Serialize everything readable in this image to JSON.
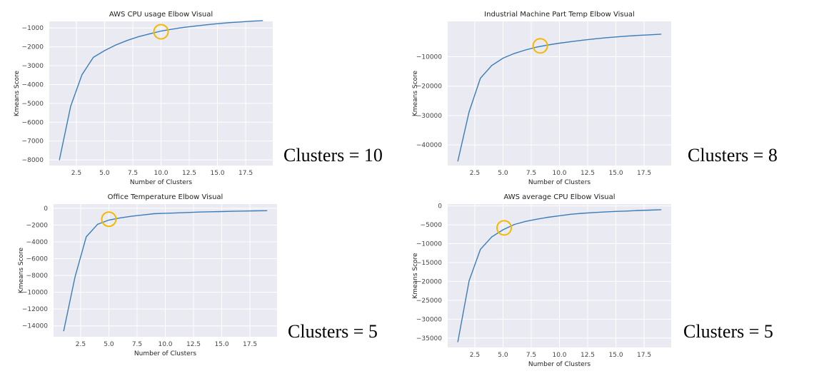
{
  "chart_data": [
    {
      "type": "line",
      "title": "AWS CPU usage Elbow Visual",
      "xlabel": "Number of Clusters",
      "ylabel": "Kmeans Score",
      "x": [
        1,
        2,
        3,
        4,
        5,
        6,
        7,
        8,
        9,
        10,
        11,
        12,
        13,
        14,
        15,
        16,
        17,
        18,
        19
      ],
      "values": [
        -8000,
        -5150,
        -3480,
        -2560,
        -2200,
        -1900,
        -1660,
        -1460,
        -1310,
        -1160,
        -1060,
        -970,
        -900,
        -830,
        -770,
        -720,
        -680,
        -640,
        -610
      ],
      "xlim": [
        0.1,
        19.9
      ],
      "ylim": [
        -8300,
        -650
      ],
      "xticks": [
        2.5,
        5.0,
        7.5,
        10.0,
        12.5,
        15.0,
        17.5
      ],
      "xtick_labels": [
        "2.5",
        "5.0",
        "7.5",
        "10.0",
        "12.5",
        "15.0",
        "17.5"
      ],
      "yticks": [
        -1000,
        -2000,
        -3000,
        -4000,
        -5000,
        -6000,
        -7000,
        -8000
      ],
      "ytick_labels": [
        "−1000",
        "−2000",
        "−3000",
        "−4000",
        "−5000",
        "−6000",
        "−7000",
        "−8000"
      ],
      "highlight": {
        "x": 10.0,
        "y": -1200
      },
      "grid": true,
      "line_color": "#3a7db8",
      "highlight_color": "#f5b800",
      "annotation": "Clusters = 10"
    },
    {
      "type": "line",
      "title": "Industrial Machine Part Temp Elbow Visual",
      "xlabel": "Number of Clusters",
      "ylabel": "Kmeans Score",
      "x": [
        1,
        2,
        3,
        4,
        5,
        6,
        7,
        8,
        9,
        10,
        11,
        12,
        13,
        14,
        15,
        16,
        17,
        18,
        19
      ],
      "values": [
        -45500,
        -28700,
        -17300,
        -13000,
        -10500,
        -8900,
        -7700,
        -6700,
        -6000,
        -5400,
        -4900,
        -4400,
        -4000,
        -3600,
        -3300,
        -3000,
        -2750,
        -2550,
        -2350
      ],
      "xlim": [
        0.1,
        19.9
      ],
      "ylim": [
        -47000,
        2000
      ],
      "xticks": [
        2.5,
        5.0,
        7.5,
        10.0,
        12.5,
        15.0,
        17.5
      ],
      "xtick_labels": [
        "2.5",
        "5.0",
        "7.5",
        "10.0",
        "12.5",
        "15.0",
        "17.5"
      ],
      "yticks": [
        -10000,
        -20000,
        -30000,
        -40000
      ],
      "ytick_labels": [
        "−10000",
        "−20000",
        "−30000",
        "−40000"
      ],
      "highlight": {
        "x": 8.3,
        "y": -6300
      },
      "grid": true,
      "line_color": "#3a7db8",
      "highlight_color": "#f5b800",
      "annotation": "Clusters = 8"
    },
    {
      "type": "line",
      "title": "Office Temperature Elbow Visual",
      "xlabel": "Number of Clusters",
      "ylabel": "Kmeans Score",
      "x": [
        1,
        2,
        3,
        4,
        5,
        6,
        7,
        8,
        9,
        10,
        11,
        12,
        13,
        14,
        15,
        16,
        17,
        18,
        19
      ],
      "values": [
        -14600,
        -8200,
        -3400,
        -1900,
        -1400,
        -1150,
        -950,
        -800,
        -650,
        -600,
        -550,
        -500,
        -450,
        -420,
        -390,
        -360,
        -330,
        -310,
        -290
      ],
      "xlim": [
        0.1,
        19.9
      ],
      "ylim": [
        -15300,
        500
      ],
      "xticks": [
        2.5,
        5.0,
        7.5,
        10.0,
        12.5,
        15.0,
        17.5
      ],
      "xtick_labels": [
        "2.5",
        "5.0",
        "7.5",
        "10.0",
        "12.5",
        "15.0",
        "17.5"
      ],
      "yticks": [
        0,
        -2000,
        -4000,
        -6000,
        -8000,
        -10000,
        -12000,
        -14000
      ],
      "ytick_labels": [
        "0",
        "−2000",
        "−4000",
        "−6000",
        "−8000",
        "−10000",
        "−12000",
        "−14000"
      ],
      "highlight": {
        "x": 5.0,
        "y": -1300
      },
      "grid": true,
      "line_color": "#3a7db8",
      "highlight_color": "#f5b800",
      "annotation": "Clusters = 5"
    },
    {
      "type": "line",
      "title": "AWS average CPU Elbow Visual",
      "xlabel": "Number of Clusters",
      "ylabel": "Kmeans Score",
      "x": [
        1,
        2,
        3,
        4,
        5,
        6,
        7,
        8,
        9,
        10,
        11,
        12,
        13,
        14,
        15,
        16,
        17,
        18,
        19
      ],
      "values": [
        -36000,
        -19800,
        -11500,
        -8200,
        -6300,
        -4900,
        -4100,
        -3500,
        -3000,
        -2600,
        -2200,
        -1950,
        -1750,
        -1600,
        -1450,
        -1350,
        -1200,
        -1100,
        -1000
      ],
      "xlim": [
        0.1,
        19.9
      ],
      "ylim": [
        -37500,
        500
      ],
      "xticks": [
        2.5,
        5.0,
        7.5,
        10.0,
        12.5,
        15.0,
        17.5
      ],
      "xtick_labels": [
        "2.5",
        "5.0",
        "7.5",
        "10.0",
        "12.5",
        "15.0",
        "17.5"
      ],
      "yticks": [
        0,
        -5000,
        -10000,
        -15000,
        -20000,
        -25000,
        -30000,
        -35000
      ],
      "ytick_labels": [
        "0",
        "−5000",
        "−10000",
        "−15000",
        "−20000",
        "−25000",
        "−30000",
        "−35000"
      ],
      "highlight": {
        "x": 5.1,
        "y": -5800
      },
      "grid": true,
      "line_color": "#3a7db8",
      "highlight_color": "#f5b800",
      "annotation": "Clusters = 5"
    }
  ]
}
